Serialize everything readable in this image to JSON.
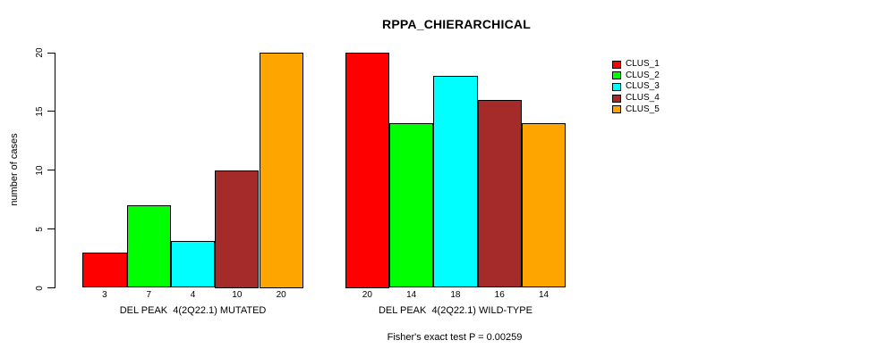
{
  "chart_data": {
    "type": "bar",
    "title": "RPPA_CHIERARCHICAL",
    "ylabel": "number of cases",
    "ylim": [
      0,
      20
    ],
    "yticks": [
      0,
      5,
      10,
      15,
      20
    ],
    "grid": false,
    "legend_position": "right",
    "legend": [
      {
        "label": "CLUS_1",
        "color": "#ff0000"
      },
      {
        "label": "CLUS_2",
        "color": "#00ff00"
      },
      {
        "label": "CLUS_3",
        "color": "#00ffff"
      },
      {
        "label": "CLUS_4",
        "color": "#a52a2a"
      },
      {
        "label": "CLUS_5",
        "color": "#ffa500"
      }
    ],
    "groups": [
      {
        "label": "DEL PEAK  4(2Q22.1) MUTATED",
        "values": [
          3,
          7,
          4,
          10,
          20
        ]
      },
      {
        "label": "DEL PEAK  4(2Q22.1) WILD-TYPE",
        "values": [
          20,
          14,
          18,
          16,
          14
        ]
      }
    ],
    "footnote": "Fisher's exact test P = 0.00259"
  }
}
